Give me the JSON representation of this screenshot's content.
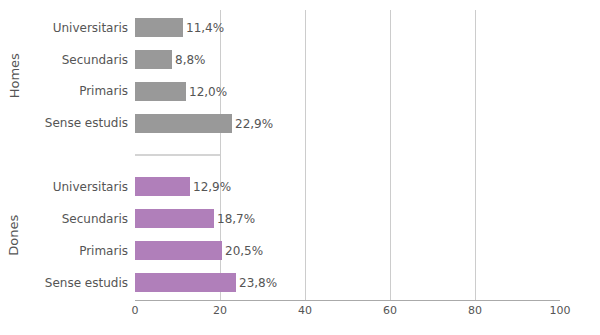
{
  "chart_data": {
    "type": "bar",
    "orientation": "horizontal",
    "categories": [
      "Universitaris",
      "Secundaris",
      "Primaris",
      "Sense estudis"
    ],
    "series": [
      {
        "name": "Homes",
        "color": "#999999",
        "values": [
          11.4,
          8.8,
          12.0,
          22.9
        ],
        "value_labels": [
          "11,4%",
          "8,8%",
          "12,0%",
          "22,9%"
        ]
      },
      {
        "name": "Dones",
        "color": "#b07fba",
        "values": [
          12.9,
          18.7,
          20.5,
          23.8
        ],
        "value_labels": [
          "12,9%",
          "18,7%",
          "20,5%",
          "23,8%"
        ]
      }
    ],
    "xlim": [
      0,
      100
    ],
    "xticks": [
      0,
      20,
      40,
      60,
      80,
      100
    ],
    "grid": true,
    "data_labels": true
  }
}
